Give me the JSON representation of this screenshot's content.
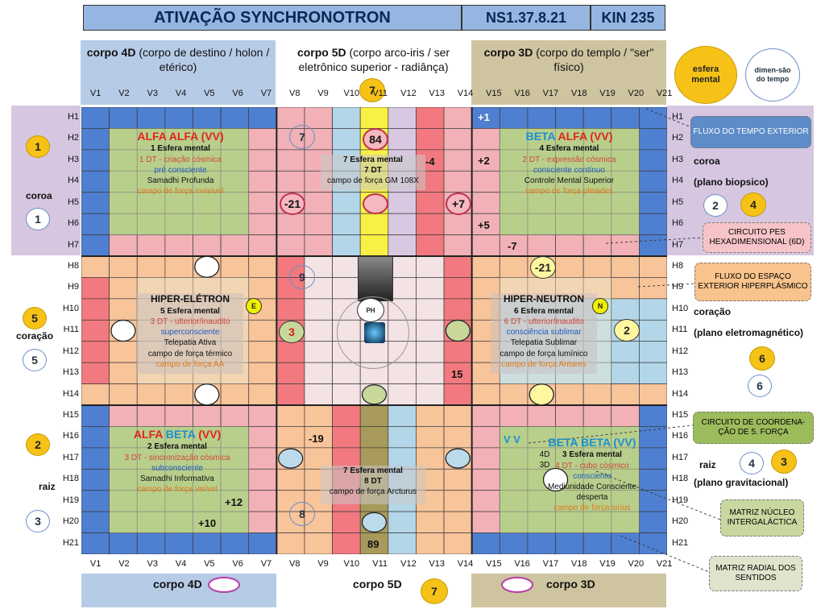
{
  "title": {
    "main": "ATIVAÇÃO SYNCHRONOTRON",
    "code": "NS1.37.8.21",
    "kin": "KIN 235"
  },
  "columns": {
    "top": [
      "V1",
      "V2",
      "V3",
      "V4",
      "V5",
      "V6",
      "V7",
      "V8",
      "V9",
      "V10",
      "V11",
      "V12",
      "V13",
      "V14",
      "V15",
      "V16",
      "V17",
      "V18",
      "V19",
      "V20",
      "V21"
    ],
    "bottom": [
      "V1",
      "V2",
      "V3",
      "V4",
      "V5",
      "V6",
      "V7",
      "V8",
      "V9",
      "V10",
      "V11",
      "V12",
      "V13",
      "V14",
      "V15",
      "V16",
      "V17",
      "V18",
      "V19",
      "V20",
      "V21"
    ]
  },
  "rows": [
    "H1",
    "H2",
    "H3",
    "H4",
    "H5",
    "H6",
    "H7",
    "H8",
    "H9",
    "H10",
    "H11",
    "H12",
    "H13",
    "H14",
    "H15",
    "H16",
    "H17",
    "H18",
    "H19",
    "H20",
    "H21"
  ],
  "bodies": {
    "b4d": {
      "bold": "corpo 4D",
      "rest": " (corpo de destino / holon / etérico)"
    },
    "b5d": {
      "bold": "corpo 5D",
      "rest": " (corpo arco-iris / ser eletrônico superior - radiânça)"
    },
    "b3d": {
      "bold": "corpo 3D",
      "rest": " (corpo do templo / \"ser\" físico)"
    }
  },
  "legend": {
    "esfera": "esfera mental",
    "dimensao": "dimen-são do tempo"
  },
  "top_num": "7",
  "left": {
    "coroa": {
      "label": "coroa",
      "n1": "1",
      "n2": "1"
    },
    "coracao": {
      "label": "coração",
      "n1": "5",
      "n2": "5"
    },
    "raiz": {
      "label": "raiz",
      "n1": "2",
      "n2": "3"
    }
  },
  "right": {
    "coroa": {
      "label": "coroa",
      "plane": "(plano biopsico)",
      "n1": "2",
      "n2": "4"
    },
    "coracao": {
      "label": "coração",
      "plane": "(plano eletromagnético)",
      "n1": "6",
      "n2": "6"
    },
    "raiz": {
      "label": "raiz",
      "plane": "(plano gravitacional)",
      "n1": "4",
      "n2": "3"
    }
  },
  "notes": {
    "fluxo_tempo": "FLUXO DO TEMPO EXTERIOR",
    "circuito_pes": "CIRCUITO PES HEXADIMENSIONAL (6D)",
    "fluxo_espaco": "FLUXO DO ESPAÇO EXTERIOR HIPERPLÁSMICO",
    "circuito_coord": "CIRCUITO DE COORDENA-ÇÃO DE 5. FORÇA",
    "matriz_nucleo": "MATRIZ NÚCLEO INTERGALÁCTICA",
    "matriz_radial": "MATRIZ RADIAL DOS SENTIDOS"
  },
  "panels": {
    "alfa_alfa": {
      "title_a": "ALFA ",
      "title_b": "ALFA ",
      "title_c": "(VV)",
      "l1": "1 Esfera mental",
      "l2": "1 DT - criação cósmica",
      "l3": "pré consciente",
      "l4": "Samadhi Profunda",
      "l5": "campo de força invisível"
    },
    "beta_alfa": {
      "title_a": "BETA ",
      "title_b": "ALFA ",
      "title_c": "(VV)",
      "l1": "4 Esfera mental",
      "l2": "2 DT - expressão cósmica",
      "l3": "consciente contínuo",
      "l4": "Controle Mental Superior",
      "l5": "campo de força pleiades"
    },
    "top5d": {
      "l1": "7 Esfera mental",
      "l2": "7 DT",
      "l3": "campo de força GM 108X"
    },
    "hiper_eletron": {
      "title": "HIPER-ELÉTRON",
      "l1": "5 Esfera mental",
      "l2": "3 DT - ulterior/inaudito",
      "l3": "superconsciente",
      "l4": "Telepatia Ativa",
      "l5": "campo de força térmico",
      "l6": "campo de força AA",
      "mark": "E"
    },
    "hiper_neutron": {
      "title": "HIPER-NEUTRON",
      "l1": "6 Esfera mental",
      "l2": "6 DT - ulterior/inaudito",
      "l3": "consciência sublimar",
      "l4": "Telepatia Sublimar",
      "l5": "campo de força lumínico",
      "l6": "campo de força Antares",
      "mark": "N"
    },
    "alfa_beta": {
      "title_a": "ALFA ",
      "title_b": "BETA ",
      "title_c": "(VV)",
      "l1": "2 Esfera mental",
      "l2": "3 DT - sincronização cósmica",
      "l3": "subconsciente",
      "l4": "Samadhi Informativa",
      "l5": "campo de força visível"
    },
    "beta_beta": {
      "title": "BETA BETA (VV)",
      "l1": "3 Esfera mental",
      "l2": "4 DT - cubo cósmico",
      "l3": "consciente",
      "l4": "Mediunidade Consciente desperta",
      "l5": "campo de força sirius"
    },
    "bot5d": {
      "l1": "7 Esfera mental",
      "l2": "8 DT",
      "l3": "campo de força Arcturus"
    }
  },
  "cells": {
    "c84": "84",
    "c7": "7",
    "cm21": "-21",
    "cp7": "+7",
    "cm4": "-4",
    "p1": "+1",
    "p2": "+2",
    "p5": "+5",
    "m7": "-7",
    "c21": "-21",
    "c9": "9",
    "c3": "3",
    "c15": "15",
    "c2": "2",
    "ph": "PH",
    "m19": "-19",
    "p12": "+12",
    "p10": "+10",
    "c8": "8",
    "c89": "89",
    "vv": "V V",
    "d43": "4D 3D"
  },
  "bottom": {
    "b4d": "corpo 4D",
    "b5d": "corpo 5D",
    "b3d": "corpo 3D",
    "num": "7"
  }
}
